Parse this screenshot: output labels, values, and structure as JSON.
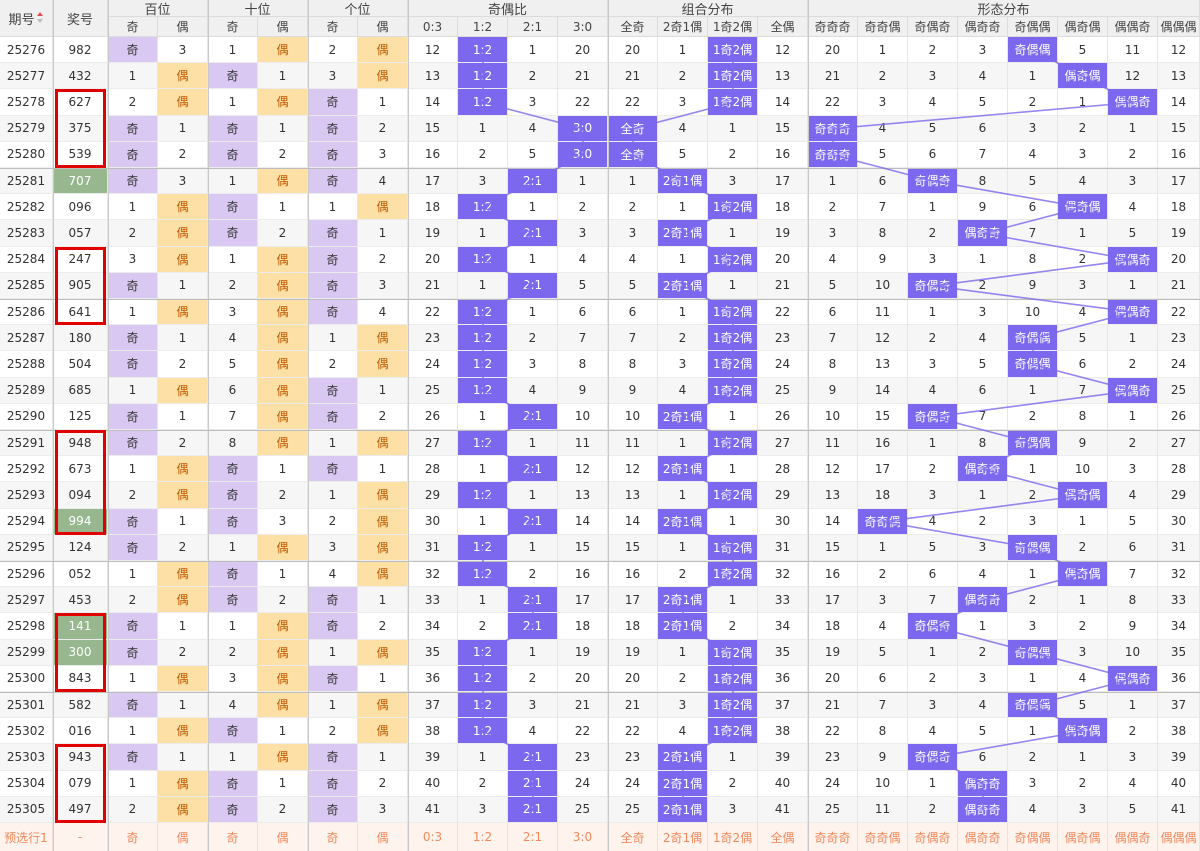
{
  "header": {
    "issue_label": "期号",
    "prize_label": "奖号",
    "groups": [
      {
        "label": "百位",
        "subs": [
          "奇",
          "偶"
        ]
      },
      {
        "label": "十位",
        "subs": [
          "奇",
          "偶"
        ]
      },
      {
        "label": "个位",
        "subs": [
          "奇",
          "偶"
        ]
      },
      {
        "label": "奇偶比",
        "subs": [
          "0:3",
          "1:2",
          "2:1",
          "3:0"
        ]
      },
      {
        "label": "组合分布",
        "subs": [
          "全奇",
          "2奇1偶",
          "1奇2偶",
          "全偶"
        ]
      },
      {
        "label": "形态分布",
        "subs": [
          "奇奇奇",
          "奇奇偶",
          "奇偶奇",
          "偶奇奇",
          "奇偶偶",
          "偶奇偶",
          "偶偶奇",
          "偶偶偶"
        ]
      }
    ]
  },
  "colors": {
    "hit": "#7b68ee",
    "purple": "#d8c8f2",
    "yellow": "#fde0a6",
    "green": "#97b88f",
    "red": "#e00000",
    "line": "#7b68ee"
  },
  "rows": [
    {
      "issue": "25276",
      "num": "982",
      "v": [
        "奇",
        "3",
        "1",
        "偶",
        "2",
        "偶",
        "12",
        "1:2",
        "1",
        "20",
        "20",
        "1",
        "1奇2偶",
        "12",
        "20",
        "1",
        "2",
        "3",
        "奇偶偶",
        "5",
        "11",
        "12"
      ]
    },
    {
      "issue": "25277",
      "num": "432",
      "v": [
        "1",
        "偶",
        "奇",
        "1",
        "3",
        "偶",
        "13",
        "1:2",
        "2",
        "21",
        "21",
        "2",
        "1奇2偶",
        "13",
        "21",
        "2",
        "3",
        "4",
        "1",
        "偶奇偶",
        "12",
        "13"
      ]
    },
    {
      "issue": "25278",
      "num": "627",
      "v": [
        "2",
        "偶",
        "1",
        "偶",
        "奇",
        "1",
        "14",
        "1:2",
        "3",
        "22",
        "22",
        "3",
        "1奇2偶",
        "14",
        "22",
        "3",
        "4",
        "5",
        "2",
        "1",
        "偶偶奇",
        "14"
      ]
    },
    {
      "issue": "25279",
      "num": "375",
      "v": [
        "奇",
        "1",
        "奇",
        "1",
        "奇",
        "2",
        "15",
        "1",
        "4",
        "3:0",
        "全奇",
        "4",
        "1",
        "15",
        "奇奇奇",
        "4",
        "5",
        "6",
        "3",
        "2",
        "1",
        "15"
      ]
    },
    {
      "issue": "25280",
      "num": "539",
      "v": [
        "奇",
        "2",
        "奇",
        "2",
        "奇",
        "3",
        "16",
        "2",
        "5",
        "3:0",
        "全奇",
        "5",
        "2",
        "16",
        "奇奇奇",
        "5",
        "6",
        "7",
        "4",
        "3",
        "2",
        "16"
      ]
    },
    {
      "issue": "25281",
      "num": "707",
      "v": [
        "奇",
        "3",
        "1",
        "偶",
        "奇",
        "4",
        "17",
        "3",
        "2:1",
        "1",
        "1",
        "2奇1偶",
        "3",
        "17",
        "1",
        "6",
        "奇偶奇",
        "8",
        "5",
        "4",
        "3",
        "17"
      ]
    },
    {
      "issue": "25282",
      "num": "096",
      "v": [
        "1",
        "偶",
        "奇",
        "1",
        "1",
        "偶",
        "18",
        "1:2",
        "1",
        "2",
        "2",
        "1",
        "1奇2偶",
        "18",
        "2",
        "7",
        "1",
        "9",
        "6",
        "偶奇偶",
        "4",
        "18"
      ]
    },
    {
      "issue": "25283",
      "num": "057",
      "v": [
        "2",
        "偶",
        "奇",
        "2",
        "奇",
        "1",
        "19",
        "1",
        "2:1",
        "3",
        "3",
        "2奇1偶",
        "1",
        "19",
        "3",
        "8",
        "2",
        "偶奇奇",
        "7",
        "1",
        "5",
        "19"
      ]
    },
    {
      "issue": "25284",
      "num": "247",
      "v": [
        "3",
        "偶",
        "1",
        "偶",
        "奇",
        "2",
        "20",
        "1:2",
        "1",
        "4",
        "4",
        "1",
        "1奇2偶",
        "20",
        "4",
        "9",
        "3",
        "1",
        "8",
        "2",
        "偶偶奇",
        "20"
      ]
    },
    {
      "issue": "25285",
      "num": "905",
      "v": [
        "奇",
        "1",
        "2",
        "偶",
        "奇",
        "3",
        "21",
        "1",
        "2:1",
        "5",
        "5",
        "2奇1偶",
        "1",
        "21",
        "5",
        "10",
        "奇偶奇",
        "2",
        "9",
        "3",
        "1",
        "21"
      ]
    },
    {
      "issue": "25286",
      "num": "641",
      "v": [
        "1",
        "偶",
        "3",
        "偶",
        "奇",
        "4",
        "22",
        "1:2",
        "1",
        "6",
        "6",
        "1",
        "1奇2偶",
        "22",
        "6",
        "11",
        "1",
        "3",
        "10",
        "4",
        "偶偶奇",
        "22"
      ]
    },
    {
      "issue": "25287",
      "num": "180",
      "v": [
        "奇",
        "1",
        "4",
        "偶",
        "1",
        "偶",
        "23",
        "1:2",
        "2",
        "7",
        "7",
        "2",
        "1奇2偶",
        "23",
        "7",
        "12",
        "2",
        "4",
        "奇偶偶",
        "5",
        "1",
        "23"
      ]
    },
    {
      "issue": "25288",
      "num": "504",
      "v": [
        "奇",
        "2",
        "5",
        "偶",
        "2",
        "偶",
        "24",
        "1:2",
        "3",
        "8",
        "8",
        "3",
        "1奇2偶",
        "24",
        "8",
        "13",
        "3",
        "5",
        "奇偶偶",
        "6",
        "2",
        "24"
      ]
    },
    {
      "issue": "25289",
      "num": "685",
      "v": [
        "1",
        "偶",
        "6",
        "偶",
        "奇",
        "1",
        "25",
        "1:2",
        "4",
        "9",
        "9",
        "4",
        "1奇2偶",
        "25",
        "9",
        "14",
        "4",
        "6",
        "1",
        "7",
        "偶偶奇",
        "25"
      ]
    },
    {
      "issue": "25290",
      "num": "125",
      "v": [
        "奇",
        "1",
        "7",
        "偶",
        "奇",
        "2",
        "26",
        "1",
        "2:1",
        "10",
        "10",
        "2奇1偶",
        "1",
        "26",
        "10",
        "15",
        "奇偶奇",
        "7",
        "2",
        "8",
        "1",
        "26"
      ]
    },
    {
      "issue": "25291",
      "num": "948",
      "v": [
        "奇",
        "2",
        "8",
        "偶",
        "1",
        "偶",
        "27",
        "1:2",
        "1",
        "11",
        "11",
        "1",
        "1奇2偶",
        "27",
        "11",
        "16",
        "1",
        "8",
        "奇偶偶",
        "9",
        "2",
        "27"
      ]
    },
    {
      "issue": "25292",
      "num": "673",
      "v": [
        "1",
        "偶",
        "奇",
        "1",
        "奇",
        "1",
        "28",
        "1",
        "2:1",
        "12",
        "12",
        "2奇1偶",
        "1",
        "28",
        "12",
        "17",
        "2",
        "偶奇奇",
        "1",
        "10",
        "3",
        "28"
      ]
    },
    {
      "issue": "25293",
      "num": "094",
      "v": [
        "2",
        "偶",
        "奇",
        "2",
        "1",
        "偶",
        "29",
        "1:2",
        "1",
        "13",
        "13",
        "1",
        "1奇2偶",
        "29",
        "13",
        "18",
        "3",
        "1",
        "2",
        "偶奇偶",
        "4",
        "29"
      ]
    },
    {
      "issue": "25294",
      "num": "994",
      "v": [
        "奇",
        "1",
        "奇",
        "3",
        "2",
        "偶",
        "30",
        "1",
        "2:1",
        "14",
        "14",
        "2奇1偶",
        "1",
        "30",
        "14",
        "奇奇偶",
        "4",
        "2",
        "3",
        "1",
        "5",
        "30"
      ]
    },
    {
      "issue": "25295",
      "num": "124",
      "v": [
        "奇",
        "2",
        "1",
        "偶",
        "3",
        "偶",
        "31",
        "1:2",
        "1",
        "15",
        "15",
        "1",
        "1奇2偶",
        "31",
        "15",
        "1",
        "5",
        "3",
        "奇偶偶",
        "2",
        "6",
        "31"
      ]
    },
    {
      "issue": "25296",
      "num": "052",
      "v": [
        "1",
        "偶",
        "奇",
        "1",
        "4",
        "偶",
        "32",
        "1:2",
        "2",
        "16",
        "16",
        "2",
        "1奇2偶",
        "32",
        "16",
        "2",
        "6",
        "4",
        "1",
        "偶奇偶",
        "7",
        "32"
      ]
    },
    {
      "issue": "25297",
      "num": "453",
      "v": [
        "2",
        "偶",
        "奇",
        "2",
        "奇",
        "1",
        "33",
        "1",
        "2:1",
        "17",
        "17",
        "2奇1偶",
        "1",
        "33",
        "17",
        "3",
        "7",
        "偶奇奇",
        "2",
        "1",
        "8",
        "33"
      ]
    },
    {
      "issue": "25298",
      "num": "141",
      "v": [
        "奇",
        "1",
        "1",
        "偶",
        "奇",
        "2",
        "34",
        "2",
        "2:1",
        "18",
        "18",
        "2奇1偶",
        "2",
        "34",
        "18",
        "4",
        "奇偶奇",
        "1",
        "3",
        "2",
        "9",
        "34"
      ]
    },
    {
      "issue": "25299",
      "num": "300",
      "v": [
        "奇",
        "2",
        "2",
        "偶",
        "1",
        "偶",
        "35",
        "1:2",
        "1",
        "19",
        "19",
        "1",
        "1奇2偶",
        "35",
        "19",
        "5",
        "1",
        "2",
        "奇偶偶",
        "3",
        "10",
        "35"
      ]
    },
    {
      "issue": "25300",
      "num": "843",
      "v": [
        "1",
        "偶",
        "3",
        "偶",
        "奇",
        "1",
        "36",
        "1:2",
        "2",
        "20",
        "20",
        "2",
        "1奇2偶",
        "36",
        "20",
        "6",
        "2",
        "3",
        "1",
        "4",
        "偶偶奇",
        "36"
      ]
    },
    {
      "issue": "25301",
      "num": "582",
      "v": [
        "奇",
        "1",
        "4",
        "偶",
        "1",
        "偶",
        "37",
        "1:2",
        "3",
        "21",
        "21",
        "3",
        "1奇2偶",
        "37",
        "21",
        "7",
        "3",
        "4",
        "奇偶偶",
        "5",
        "1",
        "37"
      ]
    },
    {
      "issue": "25302",
      "num": "016",
      "v": [
        "1",
        "偶",
        "奇",
        "1",
        "2",
        "偶",
        "38",
        "1:2",
        "4",
        "22",
        "22",
        "4",
        "1奇2偶",
        "38",
        "22",
        "8",
        "4",
        "5",
        "1",
        "偶奇偶",
        "2",
        "38"
      ]
    },
    {
      "issue": "25303",
      "num": "943",
      "v": [
        "奇",
        "1",
        "1",
        "偶",
        "奇",
        "1",
        "39",
        "1",
        "2:1",
        "23",
        "23",
        "2奇1偶",
        "1",
        "39",
        "23",
        "9",
        "奇偶奇",
        "6",
        "2",
        "1",
        "3",
        "39"
      ]
    },
    {
      "issue": "25304",
      "num": "079",
      "v": [
        "1",
        "偶",
        "奇",
        "1",
        "奇",
        "2",
        "40",
        "2",
        "2:1",
        "24",
        "24",
        "2奇1偶",
        "2",
        "40",
        "24",
        "10",
        "1",
        "偶奇奇",
        "3",
        "2",
        "4",
        "40"
      ]
    },
    {
      "issue": "25305",
      "num": "497",
      "v": [
        "2",
        "偶",
        "奇",
        "2",
        "奇",
        "3",
        "41",
        "3",
        "2:1",
        "25",
        "25",
        "2奇1偶",
        "3",
        "41",
        "25",
        "11",
        "2",
        "偶奇奇",
        "4",
        "3",
        "5",
        "41"
      ]
    }
  ],
  "prediction": {
    "label": "预选行1",
    "num": "-",
    "v": [
      "奇",
      "偶",
      "奇",
      "偶",
      "奇",
      "偶",
      "0:3",
      "1:2",
      "2:1",
      "3:0",
      "全奇",
      "2奇1偶",
      "1奇2偶",
      "全偶",
      "奇奇奇",
      "奇奇偶",
      "奇偶奇",
      "偶奇奇",
      "奇偶偶",
      "偶奇偶",
      "偶偶奇",
      "偶偶偶"
    ]
  }
}
